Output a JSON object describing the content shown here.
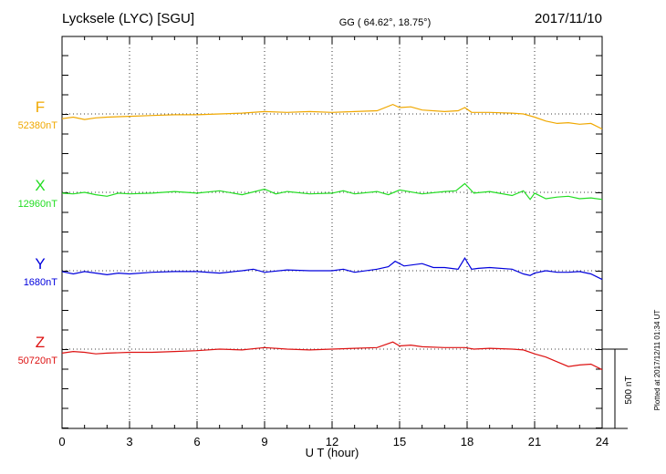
{
  "title": {
    "station": "Lycksele (LYC)  [SGU]",
    "coords": "GG ( 64.62°,  18.75°)",
    "date": "2017/11/10"
  },
  "plotted_note": "Plotted at 2017/12/11 01:34 UT",
  "scale_bar_label": "500 nT",
  "chart_data": {
    "type": "line",
    "xlabel": "U T (hour)",
    "xlim": [
      0,
      24
    ],
    "xticks": [
      0,
      3,
      6,
      9,
      12,
      15,
      18,
      21,
      24
    ],
    "scale_nT_per_bar": 500,
    "series": [
      {
        "name": "F",
        "baseline_label": "52380nT",
        "baseline_nT": 52380,
        "color": "#f0a800",
        "x": [
          0,
          0.5,
          1,
          1.5,
          2,
          3,
          4,
          5,
          6,
          7,
          8,
          9,
          10,
          11,
          12,
          13,
          14,
          14.7,
          15,
          15.5,
          16,
          17,
          17.6,
          17.9,
          18.2,
          19,
          20,
          20.5,
          21,
          21.5,
          22,
          22.5,
          23,
          23.5,
          24
        ],
        "values": [
          -30,
          -20,
          -35,
          -25,
          -20,
          -15,
          -10,
          -5,
          -5,
          0,
          5,
          15,
          10,
          15,
          10,
          15,
          20,
          60,
          40,
          45,
          25,
          15,
          20,
          40,
          10,
          10,
          5,
          0,
          -20,
          -45,
          -60,
          -55,
          -65,
          -60,
          -95
        ]
      },
      {
        "name": "X",
        "baseline_label": "12960nT",
        "baseline_nT": 12960,
        "color": "#22dd22",
        "x": [
          0,
          0.5,
          1,
          1.5,
          2,
          2.5,
          3,
          4,
          5,
          6,
          7,
          8,
          9,
          9.5,
          10,
          11,
          12,
          12.5,
          13,
          14,
          14.5,
          15,
          16,
          17,
          17.5,
          17.9,
          18.3,
          19,
          20,
          20.5,
          20.8,
          21,
          21.5,
          22,
          22.5,
          23,
          23.5,
          24
        ],
        "values": [
          -5,
          -10,
          0,
          -15,
          -25,
          -5,
          -10,
          -5,
          5,
          -5,
          10,
          -15,
          20,
          -10,
          5,
          -10,
          -5,
          10,
          -10,
          5,
          -15,
          15,
          -10,
          5,
          10,
          55,
          -5,
          5,
          -20,
          10,
          -45,
          -5,
          -40,
          -30,
          -25,
          -40,
          -35,
          -45
        ]
      },
      {
        "name": "Y",
        "baseline_label": "1680nT",
        "baseline_nT": 1680,
        "color": "#0000dd",
        "x": [
          0,
          0.5,
          1,
          1.5,
          2,
          2.5,
          3,
          4,
          5,
          6,
          7,
          8,
          8.5,
          9,
          10,
          11,
          12,
          12.5,
          13,
          14,
          14.5,
          14.8,
          15.2,
          16,
          16.5,
          17,
          17.6,
          17.9,
          18.2,
          18.5,
          19,
          20,
          20.5,
          20.8,
          21,
          21.5,
          22,
          22.5,
          23,
          23.5,
          24
        ],
        "values": [
          -5,
          -20,
          -5,
          -15,
          -25,
          -15,
          -20,
          -10,
          -5,
          -5,
          -15,
          0,
          10,
          -10,
          5,
          0,
          0,
          10,
          -10,
          10,
          25,
          60,
          30,
          45,
          20,
          20,
          10,
          80,
          10,
          15,
          20,
          10,
          -20,
          -30,
          -15,
          0,
          -10,
          -10,
          -5,
          -20,
          -55
        ]
      },
      {
        "name": "Z",
        "baseline_label": "50720nT",
        "baseline_nT": 50720,
        "color": "#dd1111",
        "x": [
          0,
          0.5,
          1,
          1.5,
          2,
          3,
          4,
          5,
          6,
          7,
          8,
          9,
          10,
          11,
          12,
          13,
          14,
          14.7,
          15,
          15.5,
          16,
          17,
          17.9,
          18.3,
          19,
          20,
          20.5,
          21,
          21.5,
          22,
          22.5,
          23,
          23.5,
          24
        ],
        "values": [
          -25,
          -15,
          -20,
          -30,
          -25,
          -20,
          -20,
          -15,
          -10,
          0,
          -5,
          10,
          0,
          -5,
          0,
          5,
          10,
          45,
          20,
          25,
          15,
          10,
          10,
          0,
          5,
          0,
          -5,
          -30,
          -50,
          -80,
          -110,
          -100,
          -95,
          -130
        ]
      }
    ]
  }
}
